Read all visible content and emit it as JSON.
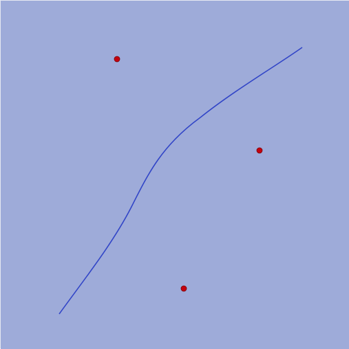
{
  "scene": {
    "background": "#9eabd9",
    "curve_color": "#3145c7",
    "point_color": "#c40010",
    "point_stroke": "#7a0008",
    "points": [
      {
        "id": "point-a"
      },
      {
        "id": "point-b"
      },
      {
        "id": "point-c"
      }
    ]
  }
}
